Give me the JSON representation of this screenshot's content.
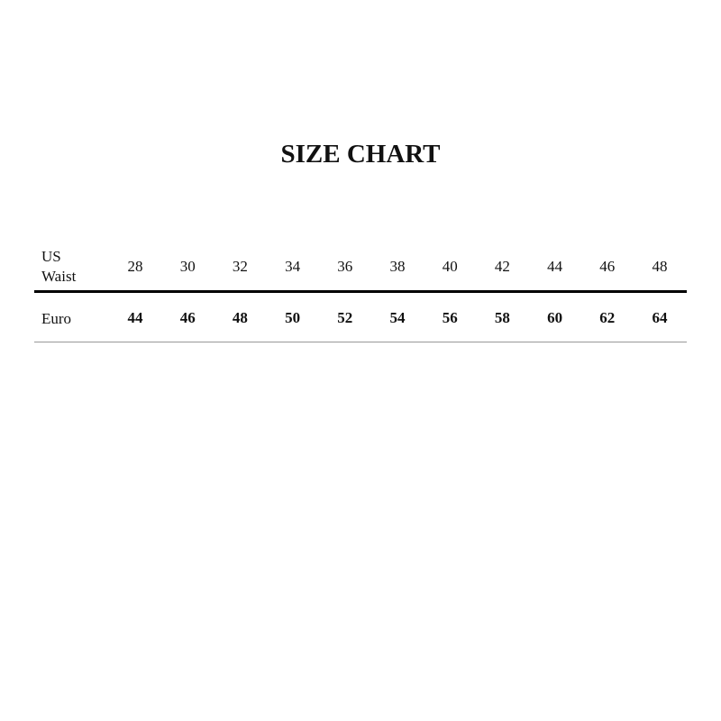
{
  "title": "SIZE CHART",
  "table": {
    "header_label": [
      "US",
      "Waist"
    ],
    "us_waist": [
      "28",
      "30",
      "32",
      "34",
      "36",
      "38",
      "40",
      "42",
      "44",
      "46",
      "48"
    ],
    "row_label": "Euro",
    "euro": [
      "44",
      "46",
      "48",
      "50",
      "52",
      "54",
      "56",
      "58",
      "60",
      "62",
      "64"
    ]
  }
}
